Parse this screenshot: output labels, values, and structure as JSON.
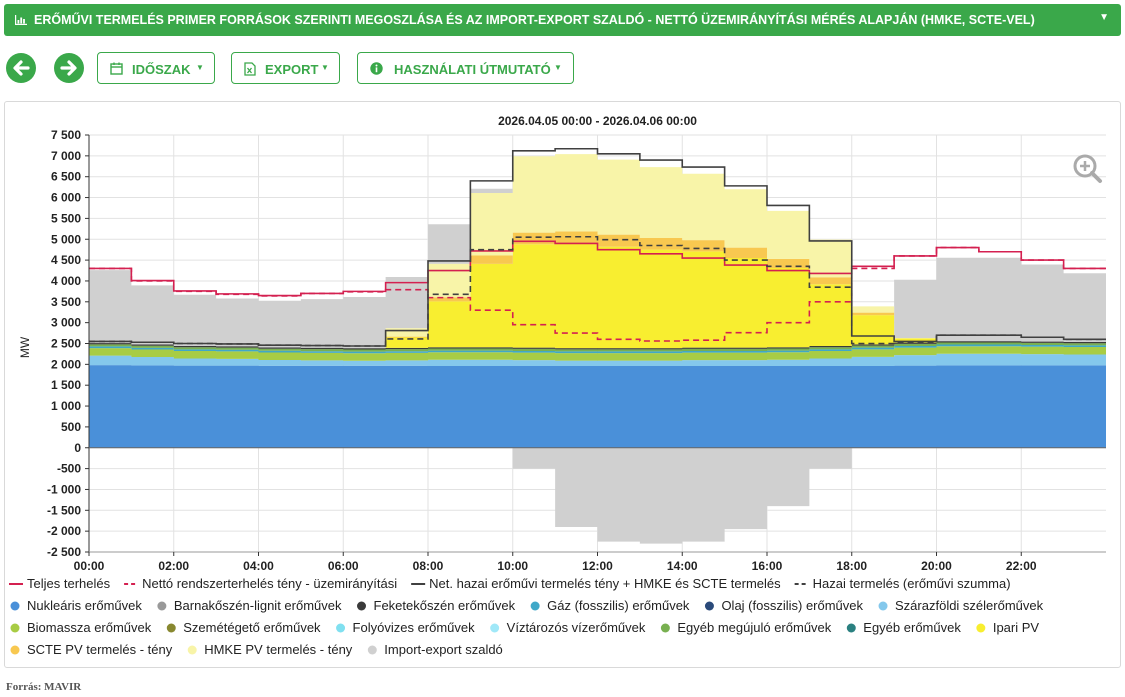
{
  "header": {
    "title": "ERŐMŰVI TERMELÉS PRIMER FORRÁSOK SZERINTI MEGOSZLÁSA ÉS AZ IMPORT-EXPORT SZALDÓ - NETTÓ ÜZEMIRÁNYÍTÁSI MÉRÉS ALAPJÁN (HMKE, SCTE-VEL)"
  },
  "toolbar": {
    "period_label": "IDŐSZAK",
    "export_label": "EXPORT",
    "guide_label": "HASZNÁLATI ÚTMUTATÓ"
  },
  "footer": {
    "source": "Forrás: MAVIR"
  },
  "colors": {
    "accent": "#3aa84a"
  },
  "chart_data": {
    "type": "area",
    "title": "2026.04.05 00:00 - 2026.04.06 00:00",
    "ylabel": "MW",
    "xlabel": "",
    "ylim": [
      -2500,
      7500
    ],
    "xlim": [
      "00:00",
      "24:00"
    ],
    "y_ticks": [
      "7 500",
      "7 000",
      "6 500",
      "6 000",
      "5 500",
      "5 000",
      "4 500",
      "4 000",
      "3 500",
      "3 000",
      "2 500",
      "2 000",
      "1 500",
      "1 000",
      "500",
      "0",
      "-500",
      "-1 000",
      "-1 500",
      "-2 000",
      "-2 500"
    ],
    "x_ticks": [
      "00:00",
      "02:00",
      "04:00",
      "06:00",
      "08:00",
      "10:00",
      "12:00",
      "14:00",
      "16:00",
      "18:00",
      "20:00",
      "22:00"
    ],
    "grid": true,
    "legend_position": "bottom",
    "time_hours": [
      0,
      1,
      2,
      3,
      4,
      5,
      6,
      7,
      8,
      9,
      10,
      11,
      12,
      13,
      14,
      15,
      16,
      17,
      18,
      19,
      20,
      21,
      22,
      23,
      24
    ],
    "series": [
      {
        "name": "Nukleáris erőművek",
        "kind": "area",
        "color": "#4a90d9",
        "values": [
          1980,
          1975,
          1970,
          1970,
          1965,
          1965,
          1965,
          1965,
          1960,
          1960,
          1960,
          1960,
          1960,
          1960,
          1960,
          1960,
          1960,
          1960,
          1960,
          1970,
          1975,
          1975,
          1975,
          1975,
          1975
        ]
      },
      {
        "name": "Szárazföldi szélerőművek",
        "kind": "area",
        "color": "#84c8ec",
        "values": [
          230,
          200,
          170,
          160,
          140,
          130,
          120,
          130,
          150,
          150,
          140,
          130,
          130,
          130,
          140,
          140,
          150,
          180,
          220,
          250,
          280,
          280,
          270,
          260,
          250
        ]
      },
      {
        "name": "Biomassza erőművek",
        "kind": "area",
        "color": "#a8cc44",
        "values": [
          180,
          180,
          180,
          180,
          180,
          180,
          180,
          180,
          180,
          180,
          180,
          180,
          180,
          180,
          180,
          180,
          180,
          180,
          180,
          180,
          180,
          180,
          180,
          180,
          180
        ]
      },
      {
        "name": "Gáz (fosszilis) erőművek",
        "kind": "area",
        "color": "#40a8c8",
        "values": [
          40,
          40,
          40,
          40,
          40,
          40,
          40,
          40,
          40,
          40,
          40,
          40,
          40,
          40,
          40,
          40,
          40,
          40,
          40,
          40,
          40,
          40,
          40,
          40,
          40
        ]
      },
      {
        "name": "Egyéb megújuló erőművek",
        "kind": "area",
        "color": "#78b050",
        "values": [
          50,
          50,
          50,
          50,
          50,
          50,
          50,
          50,
          50,
          50,
          50,
          50,
          50,
          50,
          50,
          50,
          50,
          50,
          50,
          50,
          50,
          50,
          50,
          50,
          50
        ]
      },
      {
        "name": "Feketekőszén erőművek",
        "kind": "area",
        "color": "#3a3a3a",
        "values": [
          30,
          30,
          30,
          30,
          30,
          30,
          30,
          30,
          30,
          30,
          30,
          30,
          30,
          30,
          30,
          30,
          30,
          30,
          30,
          30,
          30,
          30,
          30,
          30,
          30
        ]
      },
      {
        "name": "Ipari PV",
        "kind": "area",
        "color": "#f8ee30",
        "values": [
          0,
          0,
          0,
          0,
          0,
          0,
          0,
          250,
          1100,
          2000,
          2480,
          2500,
          2430,
          2360,
          2310,
          2150,
          1900,
          1480,
          700,
          100,
          0,
          0,
          0,
          0,
          0
        ]
      },
      {
        "name": "SCTE PV termelés - tény",
        "kind": "area",
        "color": "#f8c850",
        "values": [
          0,
          0,
          0,
          0,
          0,
          0,
          0,
          20,
          100,
          200,
          280,
          300,
          290,
          280,
          270,
          250,
          220,
          170,
          60,
          0,
          0,
          0,
          0,
          0,
          0
        ]
      },
      {
        "name": "HMKE PV termelés - tény",
        "kind": "area",
        "color": "#f8f4a8",
        "values": [
          0,
          0,
          0,
          0,
          0,
          0,
          0,
          200,
          800,
          1500,
          1830,
          1850,
          1800,
          1700,
          1590,
          1400,
          1150,
          900,
          150,
          10,
          0,
          0,
          0,
          0,
          0
        ]
      },
      {
        "name": "Import-export szaldó",
        "kind": "balance",
        "color": "#d0d0d0",
        "values": [
          1750,
          1420,
          1230,
          1150,
          1120,
          1170,
          1230,
          1230,
          950,
          100,
          -500,
          -1900,
          -2250,
          -2300,
          -2250,
          -1950,
          -1400,
          -500,
          0,
          1400,
          2000,
          2000,
          1850,
          1650,
          1650
        ]
      },
      {
        "name": "Teljes terhelés",
        "kind": "line",
        "color": "#d42050",
        "dash": "",
        "values": [
          4300,
          4010,
          3760,
          3690,
          3650,
          3700,
          3750,
          3960,
          4250,
          4720,
          4950,
          4900,
          4750,
          4650,
          4550,
          4380,
          4250,
          4180,
          4350,
          4600,
          4800,
          4700,
          4500,
          4300,
          4200
        ]
      },
      {
        "name": "Nettó rendszerterhelés tény - üzemirányítási",
        "kind": "line",
        "color": "#d42050",
        "dash": "6,4",
        "values": [
          4300,
          4000,
          3750,
          3680,
          3640,
          3700,
          3740,
          3790,
          3600,
          3300,
          2950,
          2750,
          2600,
          2560,
          2580,
          2760,
          3000,
          3500,
          4300,
          4600,
          4800,
          4700,
          4500,
          4300,
          4200
        ]
      },
      {
        "name": "Net. hazai erőművi termelés tény + HMKE és SCTE termelés",
        "kind": "line",
        "color": "#404040",
        "dash": "",
        "values": [
          2550,
          2530,
          2500,
          2490,
          2460,
          2450,
          2440,
          2810,
          4480,
          6400,
          7120,
          7170,
          7050,
          6900,
          6730,
          6280,
          5810,
          4960,
          2680,
          2550,
          2700,
          2700,
          2650,
          2600,
          2560
        ]
      },
      {
        "name": "Hazai termelés (erőművi szumma)",
        "kind": "line",
        "color": "#404040",
        "dash": "6,4",
        "values": [
          2550,
          2530,
          2500,
          2490,
          2460,
          2450,
          2440,
          2610,
          3680,
          4750,
          5050,
          5060,
          4990,
          4850,
          4780,
          4500,
          4350,
          3850,
          2500,
          2520,
          2700,
          2700,
          2650,
          2600,
          2560
        ]
      },
      {
        "name": "Barnakőszén-lignit erőművek",
        "kind": "legend",
        "color": "#999999"
      },
      {
        "name": "Olaj (fosszilis) erőművek",
        "kind": "legend",
        "color": "#2a4a7a"
      },
      {
        "name": "Szemétégető erőművek",
        "kind": "legend",
        "color": "#888830"
      },
      {
        "name": "Folyóvizes erőművek",
        "kind": "legend",
        "color": "#80e0f0"
      },
      {
        "name": "Víztározós vízerőművek",
        "kind": "legend",
        "color": "#a0e8f8"
      },
      {
        "name": "Egyéb erőművek",
        "kind": "legend",
        "color": "#2a8080"
      }
    ],
    "legend": [
      {
        "name": "Teljes terhelés",
        "marker": "line",
        "color": "#d42050",
        "dash": ""
      },
      {
        "name": "Nettó rendszerterhelés tény - üzemirányítási",
        "marker": "line",
        "color": "#d42050",
        "dash": "4,3"
      },
      {
        "name": "Net. hazai erőművi termelés tény + HMKE és SCTE termelés",
        "marker": "line",
        "color": "#404040",
        "dash": ""
      },
      {
        "name": "Hazai termelés (erőművi szumma)",
        "marker": "line",
        "color": "#404040",
        "dash": "4,3"
      },
      {
        "name": "Nukleáris erőművek",
        "marker": "dot",
        "color": "#4a90d9"
      },
      {
        "name": "Barnakőszén-lignit erőművek",
        "marker": "dot",
        "color": "#999999"
      },
      {
        "name": "Feketekőszén erőművek",
        "marker": "dot",
        "color": "#3a3a3a"
      },
      {
        "name": "Gáz (fosszilis) erőművek",
        "marker": "dot",
        "color": "#40a8c8"
      },
      {
        "name": "Olaj (fosszilis) erőművek",
        "marker": "dot",
        "color": "#2a4a7a"
      },
      {
        "name": "Szárazföldi szélerőművek",
        "marker": "dot",
        "color": "#84c8ec"
      },
      {
        "name": "Biomassza erőművek",
        "marker": "dot",
        "color": "#a8cc44"
      },
      {
        "name": "Szemétégető erőművek",
        "marker": "dot",
        "color": "#888830"
      },
      {
        "name": "Folyóvizes erőművek",
        "marker": "dot",
        "color": "#80e0f0"
      },
      {
        "name": "Víztározós vízerőművek",
        "marker": "dot",
        "color": "#a0e8f8"
      },
      {
        "name": "Egyéb megújuló erőművek",
        "marker": "dot",
        "color": "#78b050"
      },
      {
        "name": "Egyéb erőművek",
        "marker": "dot",
        "color": "#2a8080"
      },
      {
        "name": "Ipari PV",
        "marker": "dot",
        "color": "#f8ee30"
      },
      {
        "name": "SCTE PV termelés - tény",
        "marker": "dot",
        "color": "#f8c850"
      },
      {
        "name": "HMKE PV termelés - tény",
        "marker": "dot",
        "color": "#f8f4a8"
      },
      {
        "name": "Import-export szaldó",
        "marker": "dot",
        "color": "#d0d0d0"
      }
    ]
  }
}
